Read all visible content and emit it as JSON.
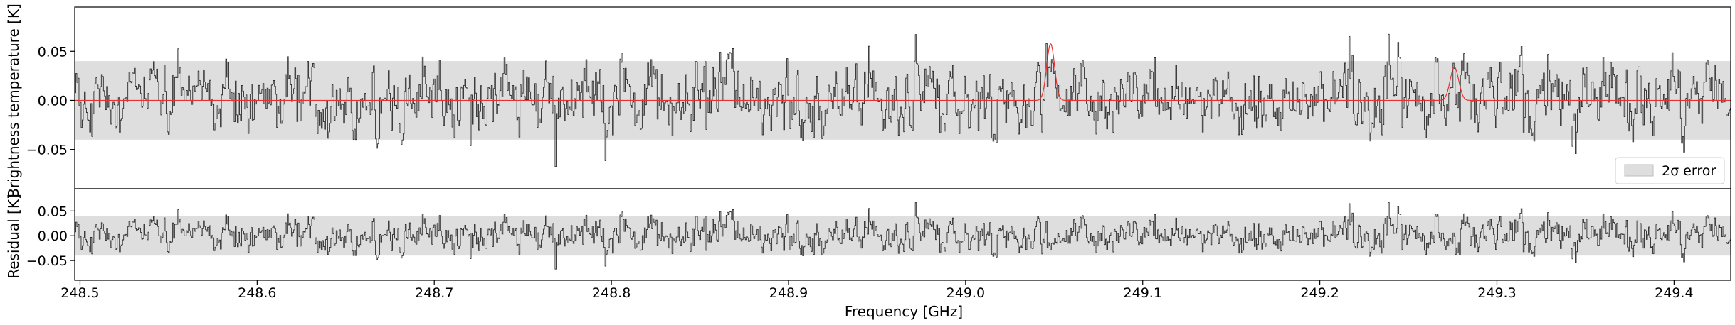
{
  "chart_data": [
    {
      "type": "line",
      "panel": "spectrum",
      "ylabel": "Brightness temperature [K]",
      "ylim": [
        -0.09,
        0.095
      ],
      "yticks": [
        0.05,
        0.0,
        -0.05
      ],
      "ytick_labels": [
        "0.05",
        "0.00",
        "−0.05"
      ],
      "xlim": [
        248.497,
        249.432
      ],
      "grid": false,
      "noise_band": {
        "label": "2σ error",
        "lower": -0.04,
        "upper": 0.04,
        "color": "#dedede"
      },
      "series": [
        {
          "kind": "observed",
          "color": "#2b2b2b",
          "style": "steps",
          "x_start": 248.497,
          "x_step": 0.0006,
          "noise_rms": 0.019,
          "y_sample": [
            0.012,
            -0.021,
            0.031,
            0.018,
            -0.034,
            0.005,
            0.027,
            -0.012,
            -0.041,
            0.022,
            0.039,
            -0.008,
            0.014,
            -0.027,
            0.033,
            0.001
          ]
        },
        {
          "kind": "model",
          "color": "#e8312f",
          "baseline": 0.0,
          "lines": [
            {
              "center": 249.048,
              "peak": 0.058,
              "width": 0.0022
            },
            {
              "center": 249.276,
              "peak": 0.034,
              "width": 0.0024
            }
          ]
        }
      ],
      "legend": {
        "placement": "lower-right",
        "entries": [
          "2σ error"
        ]
      }
    },
    {
      "type": "line",
      "panel": "residual",
      "ylabel": "Residual [K]",
      "ylim": [
        -0.09,
        0.095
      ],
      "yticks": [
        0.05,
        0.0,
        -0.05
      ],
      "ytick_labels": [
        "0.05",
        "0.00",
        "−0.05"
      ],
      "xlabel": "Frequency [GHz]",
      "xlim": [
        248.497,
        249.432
      ],
      "xticks": [
        248.5,
        248.6,
        248.7,
        248.8,
        248.9,
        249.0,
        249.1,
        249.2,
        249.3,
        249.4
      ],
      "xtick_labels": [
        "248.5",
        "248.6",
        "248.7",
        "248.8",
        "248.9",
        "249.0",
        "249.1",
        "249.2",
        "249.3",
        "249.4"
      ],
      "noise_band": {
        "lower": -0.04,
        "upper": 0.04,
        "color": "#dedede"
      },
      "series": [
        {
          "kind": "residual",
          "color": "#2b2b2b",
          "style": "steps",
          "equals": "observed minus model"
        }
      ]
    }
  ]
}
